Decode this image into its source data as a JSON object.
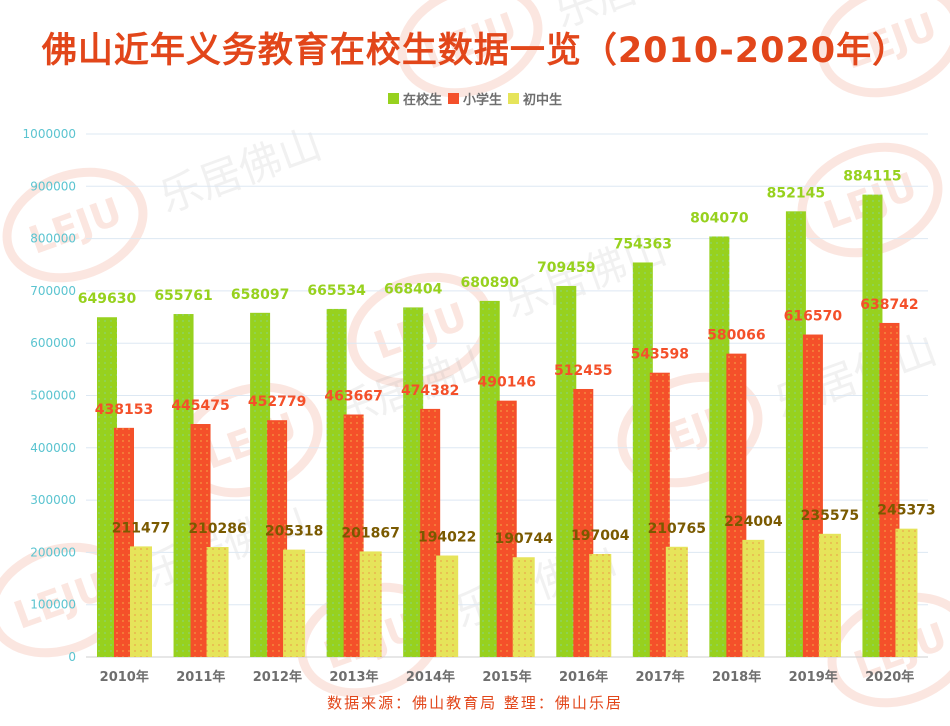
{
  "title": "佛山近年义务教育在校生数据一览（2010-2020年）",
  "footer": "数据来源：佛山教育局  整理：佛山乐居",
  "watermark": {
    "logo_text": "LEJU",
    "text": "乐居佛山"
  },
  "colors": {
    "total": "#97d11e",
    "primary": "#f4502a",
    "junior": "#e6e45a",
    "axis_label": "#5bc4d0",
    "total_label": "#97d11e",
    "primary_label": "#f4502a",
    "junior_label": "#7a5a00",
    "grid": "#dde8f3",
    "category_label": "#6e6e6e"
  },
  "chart_data": {
    "type": "bar",
    "title": "佛山近年义务教育在校生数据一览（2010-2020年）",
    "xlabel": "",
    "ylabel": "",
    "ylim": [
      0,
      1000000
    ],
    "yticks": [
      "0",
      "100000",
      "200000",
      "300000",
      "400000",
      "500000",
      "600000",
      "700000",
      "800000",
      "900000",
      "1000000"
    ],
    "grid": true,
    "legend_position": "top-center",
    "categories": [
      "2010年",
      "2011年",
      "2012年",
      "2013年",
      "2014年",
      "2015年",
      "2016年",
      "2017年",
      "2018年",
      "2019年",
      "2020年"
    ],
    "series": [
      {
        "name": "在校生",
        "values": [
          649630,
          655761,
          658097,
          665534,
          668404,
          680890,
          709459,
          754363,
          804070,
          852145,
          884115
        ]
      },
      {
        "name": "小学生",
        "values": [
          438153,
          445475,
          452779,
          463667,
          474382,
          490146,
          512455,
          543598,
          580066,
          616570,
          638742
        ]
      },
      {
        "name": "初中生",
        "values": [
          211477,
          210286,
          205318,
          201867,
          194022,
          190744,
          197004,
          210765,
          224004,
          235575,
          245373
        ]
      }
    ]
  }
}
